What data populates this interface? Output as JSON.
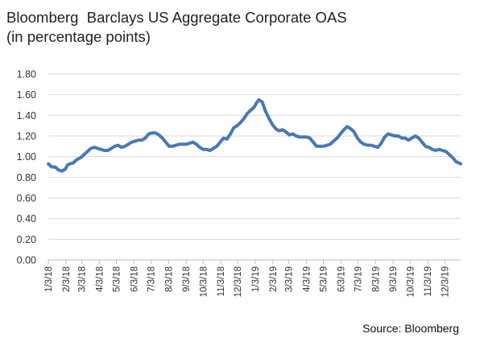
{
  "chart_data": {
    "type": "line",
    "title": "Bloomberg  Barclays US Aggregate Corporate OAS",
    "subtitle": "(in percentage points)",
    "source": "Source: Bloomberg",
    "ylim": [
      0,
      1.8
    ],
    "yticks": [
      "0.00",
      "0.20",
      "0.40",
      "0.60",
      "0.80",
      "1.00",
      "1.20",
      "1.40",
      "1.60",
      "1.80"
    ],
    "xticks": [
      "1/3/18",
      "2/3/18",
      "3/3/18",
      "4/3/18",
      "5/3/18",
      "6/3/18",
      "7/3/18",
      "8/3/18",
      "9/3/18",
      "10/3/18",
      "11/3/18",
      "12/3/18",
      "1/3/19",
      "2/3/19",
      "3/3/19",
      "4/3/19",
      "5/3/19",
      "6/3/19",
      "7/3/19",
      "8/3/19",
      "9/3/19",
      "10/3/19",
      "11/3/19",
      "12/3/19"
    ],
    "grid": "horizontal",
    "series": [
      {
        "color": "#4a78b5",
        "x": [
          "2018-01-03",
          "2018-01-09",
          "2018-01-15",
          "2018-01-21",
          "2018-01-27",
          "2018-02-02",
          "2018-02-06",
          "2018-02-10",
          "2018-02-16",
          "2018-02-22",
          "2018-03-01",
          "2018-03-07",
          "2018-03-13",
          "2018-03-19",
          "2018-03-25",
          "2018-03-31",
          "2018-04-06",
          "2018-04-12",
          "2018-04-18",
          "2018-04-24",
          "2018-04-30",
          "2018-05-06",
          "2018-05-12",
          "2018-05-18",
          "2018-05-24",
          "2018-05-30",
          "2018-06-05",
          "2018-06-11",
          "2018-06-17",
          "2018-06-23",
          "2018-06-29",
          "2018-07-05",
          "2018-07-11",
          "2018-07-17",
          "2018-07-23",
          "2018-07-29",
          "2018-08-04",
          "2018-08-10",
          "2018-08-16",
          "2018-08-22",
          "2018-08-28",
          "2018-09-03",
          "2018-09-09",
          "2018-09-15",
          "2018-09-21",
          "2018-09-27",
          "2018-10-03",
          "2018-10-09",
          "2018-10-15",
          "2018-10-21",
          "2018-10-27",
          "2018-11-02",
          "2018-11-08",
          "2018-11-14",
          "2018-11-20",
          "2018-11-26",
          "2018-12-02",
          "2018-12-08",
          "2018-12-14",
          "2018-12-20",
          "2018-12-26",
          "2019-01-01",
          "2019-01-05",
          "2019-01-09",
          "2019-01-15",
          "2019-01-21",
          "2019-01-27",
          "2019-02-02",
          "2019-02-08",
          "2019-02-14",
          "2019-02-20",
          "2019-02-26",
          "2019-03-04",
          "2019-03-10",
          "2019-03-16",
          "2019-03-22",
          "2019-03-28",
          "2019-04-03",
          "2019-04-09",
          "2019-04-15",
          "2019-04-21",
          "2019-04-27",
          "2019-05-03",
          "2019-05-09",
          "2019-05-15",
          "2019-05-21",
          "2019-05-27",
          "2019-06-02",
          "2019-06-08",
          "2019-06-14",
          "2019-06-20",
          "2019-06-26",
          "2019-07-02",
          "2019-07-08",
          "2019-07-14",
          "2019-07-20",
          "2019-07-26",
          "2019-08-01",
          "2019-08-07",
          "2019-08-13",
          "2019-08-19",
          "2019-08-25",
          "2019-08-31",
          "2019-09-06",
          "2019-09-12",
          "2019-09-18",
          "2019-09-24",
          "2019-09-30",
          "2019-10-06",
          "2019-10-12",
          "2019-10-18",
          "2019-10-24",
          "2019-10-30",
          "2019-11-05",
          "2019-11-11",
          "2019-11-17",
          "2019-11-23",
          "2019-11-29",
          "2019-12-05",
          "2019-12-11",
          "2019-12-17",
          "2019-12-23",
          "2019-12-31"
        ],
        "values": [
          0.93,
          0.9,
          0.9,
          0.87,
          0.86,
          0.88,
          0.92,
          0.93,
          0.94,
          0.97,
          0.99,
          1.02,
          1.05,
          1.08,
          1.09,
          1.08,
          1.07,
          1.06,
          1.06,
          1.08,
          1.1,
          1.11,
          1.09,
          1.1,
          1.12,
          1.14,
          1.15,
          1.16,
          1.16,
          1.18,
          1.22,
          1.23,
          1.23,
          1.21,
          1.18,
          1.14,
          1.1,
          1.1,
          1.11,
          1.12,
          1.12,
          1.12,
          1.13,
          1.14,
          1.12,
          1.09,
          1.07,
          1.07,
          1.06,
          1.08,
          1.1,
          1.14,
          1.18,
          1.17,
          1.22,
          1.28,
          1.3,
          1.33,
          1.37,
          1.42,
          1.45,
          1.48,
          1.52,
          1.55,
          1.53,
          1.44,
          1.37,
          1.31,
          1.27,
          1.25,
          1.26,
          1.24,
          1.21,
          1.22,
          1.2,
          1.19,
          1.19,
          1.19,
          1.18,
          1.14,
          1.1,
          1.1,
          1.1,
          1.11,
          1.12,
          1.15,
          1.18,
          1.22,
          1.26,
          1.29,
          1.27,
          1.24,
          1.18,
          1.14,
          1.12,
          1.11,
          1.11,
          1.1,
          1.09,
          1.13,
          1.19,
          1.22,
          1.21,
          1.2,
          1.2,
          1.18,
          1.18,
          1.16,
          1.18,
          1.2,
          1.18,
          1.14,
          1.1,
          1.09,
          1.07,
          1.06,
          1.07,
          1.06,
          1.05,
          1.02,
          0.99,
          0.95,
          0.93
        ]
      }
    ]
  }
}
